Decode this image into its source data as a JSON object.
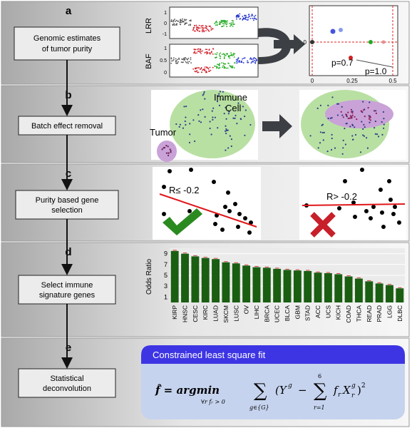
{
  "panels": [
    {
      "letter": "a",
      "step": [
        "Genomic estimates",
        "of tumor purity"
      ]
    },
    {
      "letter": "b",
      "step": [
        "Batch effect removal"
      ]
    },
    {
      "letter": "c",
      "step": [
        "Purity based gene",
        "selection"
      ]
    },
    {
      "letter": "d",
      "step": [
        "Select immune",
        "signature genes"
      ]
    },
    {
      "letter": "e",
      "step": [
        "Statistical",
        "deconvolution"
      ]
    }
  ],
  "panel_a": {
    "lrr_label": "LRR",
    "baf_label": "BAF",
    "lrr_ticks": [
      "1",
      "0",
      "-1"
    ],
    "baf_ticks": [
      "1",
      "0.5",
      "0"
    ],
    "purity_ticks_x": [
      "0",
      "0.25",
      "0.5"
    ],
    "purity_tick_y": "0",
    "p1": "p=0.7",
    "p2": "p=1.0",
    "segment_colors": [
      "#555555",
      "#d0202a",
      "#22aa22",
      "#2233cc"
    ]
  },
  "panel_b": {
    "immune_label": [
      "Immune",
      "Cell"
    ],
    "tumor_label": "Tumor",
    "immune_color": "#b9e0a3",
    "tumor_color": "#c9a2d8"
  },
  "panel_c": {
    "good_label": "R≤ -0.2",
    "bad_label": "R> -0.2",
    "line_color": "#e0161a",
    "check_color": "#2a8a1f",
    "cross_color": "#c8202a"
  },
  "panel_e": {
    "box_title": "Constrained least square fit",
    "box_title_color": "#3d35e3",
    "formula": {
      "lhs": "f̂ = argmin",
      "under_argmin": "∀r fᵣ > 0",
      "sum1_sub": "g∈{G}",
      "body1": "(Y",
      "sup_g": "g",
      "minus": "−",
      "sum2_sup": "6",
      "sum2_sub": "r=1",
      "body2": "f",
      "sub_r": "r",
      "body3": "X",
      "close": ")",
      "sup_2": "2"
    }
  },
  "chart_data": {
    "type": "bar",
    "categories": [
      "KIRP",
      "HNSC",
      "CESC",
      "KIRC",
      "LUAD",
      "SKCM",
      "LUSC",
      "OV",
      "LIHC",
      "BRCA",
      "UCEC",
      "BLCA",
      "GBM",
      "STAD",
      "ACC",
      "UCS",
      "KICH",
      "COAD",
      "THCA",
      "READ",
      "PRAD",
      "LGG",
      "DLBC"
    ],
    "values": [
      9.5,
      9.0,
      8.5,
      8.2,
      8.0,
      7.4,
      7.2,
      6.8,
      6.5,
      6.4,
      6.2,
      6.0,
      5.9,
      5.8,
      5.5,
      5.4,
      5.2,
      4.8,
      4.4,
      3.9,
      3.5,
      3.2,
      2.6
    ],
    "ylabel": "Odds Ratio",
    "yticks": [
      1,
      3,
      5,
      7,
      9
    ],
    "ylim": [
      0,
      10
    ],
    "bar_color": "#1a5e12",
    "grid": true
  }
}
